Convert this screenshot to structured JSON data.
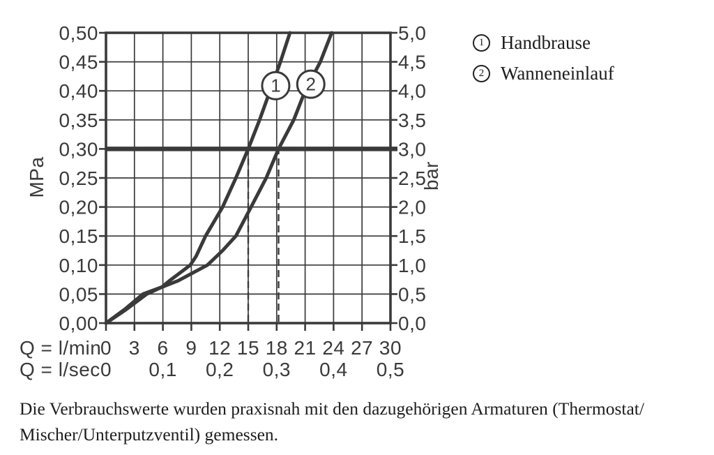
{
  "chart_data": {
    "type": "line",
    "title": "",
    "x_axis": {
      "row1_label": "Q = l/min",
      "row1_ticks": [
        0,
        3,
        6,
        9,
        12,
        15,
        18,
        21,
        24,
        27,
        30
      ],
      "row2_label": "Q = l/sec",
      "row2_ticks": [
        {
          "label": "0",
          "q": 0
        },
        {
          "label": "0,1",
          "q": 6
        },
        {
          "label": "0,2",
          "q": 12
        },
        {
          "label": "0,3",
          "q": 18
        },
        {
          "label": "0,4",
          "q": 24
        },
        {
          "label": "0,5",
          "q": 30
        }
      ],
      "range_lmin": [
        0,
        30
      ]
    },
    "y_axis_left": {
      "unit": "MPa",
      "ticks": [
        "0,00",
        "0,05",
        "0,10",
        "0,15",
        "0,20",
        "0,25",
        "0,30",
        "0,35",
        "0,40",
        "0,45",
        "0,50"
      ],
      "range_mpa": [
        0,
        0.5
      ]
    },
    "y_axis_right": {
      "unit": "bar",
      "ticks": [
        "0,0",
        "0,5",
        "1,0",
        "1,5",
        "2,0",
        "2,5",
        "3,0",
        "3,5",
        "4,0",
        "4,5",
        "5,0"
      ],
      "range_bar": [
        0,
        5
      ]
    },
    "grid": {
      "on": true,
      "x_step_lmin": 3,
      "y_step_mpa": 0.05
    },
    "reference_line_mpa": 0.3,
    "dashed_guides_lmin": [
      15,
      18.2
    ],
    "series": [
      {
        "symbol": "1",
        "name": "Handbrause",
        "points_lmin_mpa": [
          [
            0,
            0
          ],
          [
            2,
            0.024
          ],
          [
            3.9,
            0.05
          ],
          [
            5.9,
            0.062
          ],
          [
            6.7,
            0.073
          ],
          [
            8.9,
            0.1
          ],
          [
            9.5,
            0.115
          ],
          [
            10.5,
            0.15
          ],
          [
            12.3,
            0.2
          ],
          [
            13.7,
            0.25
          ],
          [
            15,
            0.3
          ],
          [
            16.2,
            0.35
          ],
          [
            17.3,
            0.4
          ],
          [
            18.4,
            0.45
          ],
          [
            19.4,
            0.5
          ]
        ]
      },
      {
        "symbol": "2",
        "name": "Wanneneinlauf",
        "points_lmin_mpa": [
          [
            0,
            0
          ],
          [
            2,
            0.022
          ],
          [
            4.3,
            0.05
          ],
          [
            5.9,
            0.062
          ],
          [
            7.6,
            0.073
          ],
          [
            10.7,
            0.1
          ],
          [
            12.3,
            0.125
          ],
          [
            13.7,
            0.15
          ],
          [
            15.3,
            0.2
          ],
          [
            16.9,
            0.25
          ],
          [
            18.2,
            0.3
          ],
          [
            19.8,
            0.35
          ],
          [
            21,
            0.4
          ],
          [
            22.6,
            0.45
          ],
          [
            23.8,
            0.5
          ]
        ]
      }
    ],
    "curve_markers": [
      {
        "symbol": "1",
        "q": 17.9,
        "mpa": 0.409
      },
      {
        "symbol": "2",
        "q": 21.6,
        "mpa": 0.4115
      }
    ]
  },
  "legend": {
    "items": [
      {
        "symbol": "1",
        "label": "Handbrause"
      },
      {
        "symbol": "2",
        "label": "Wanneneinlauf"
      }
    ]
  },
  "caption": {
    "line1": "Die Verbrauchswerte wurden praxisnah mit den dazugehörigen Armaturen (Thermostat/",
    "line2": "Mischer/Unterputzventil) gemessen."
  },
  "colors": {
    "ink": "#3a3a3a",
    "text": "#1d1d1d",
    "background": "#ffffff"
  }
}
